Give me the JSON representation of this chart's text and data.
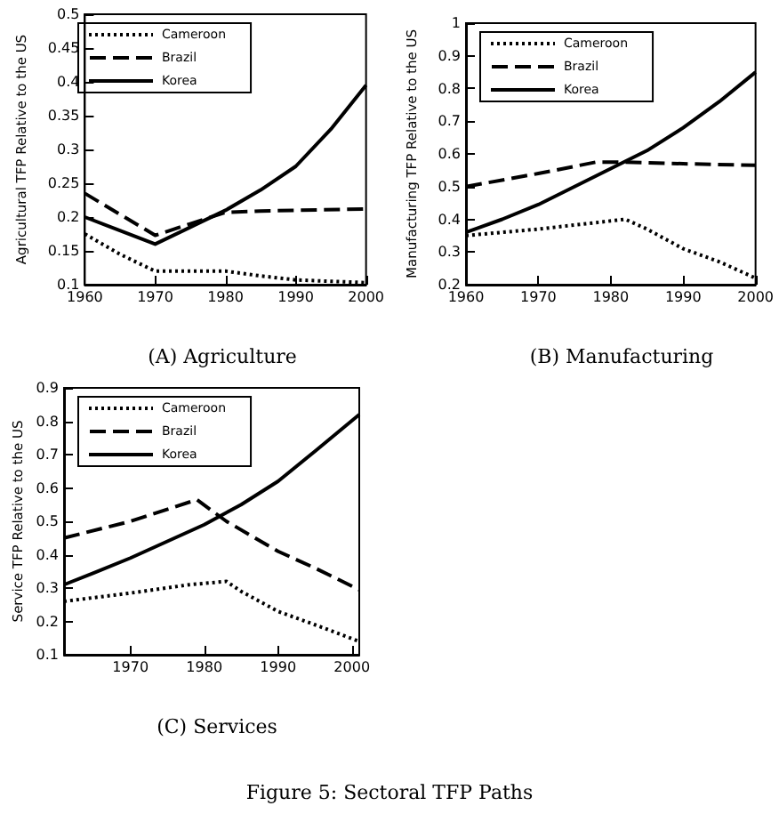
{
  "chart_data": [
    {
      "type": "line",
      "title": "(A) Agriculture",
      "ylabel": "Agricultural TFP Relative to the US",
      "xlim": [
        1960,
        2000
      ],
      "xticks": [
        1960,
        1970,
        1980,
        1990,
        2000
      ],
      "ylim": [
        0.1,
        0.5
      ],
      "yticks": [
        0.1,
        0.15,
        0.2,
        0.25,
        0.3,
        0.35,
        0.4,
        0.45,
        0.5
      ],
      "grid": false,
      "legend": "top left",
      "marker": "none",
      "series": [
        {
          "name": "Cameroon",
          "color": "#000000",
          "line_style": "dotted",
          "x": [
            1960,
            1965,
            1970,
            1975,
            1980,
            1985,
            1990,
            1995,
            2000
          ],
          "values": [
            0.175,
            0.145,
            0.12,
            0.12,
            0.12,
            0.113,
            0.107,
            0.105,
            0.103
          ]
        },
        {
          "name": "Brazil",
          "color": "#000000",
          "line_style": "dashed",
          "x": [
            1960,
            1970,
            1975,
            1980,
            1985,
            1990,
            2000
          ],
          "values": [
            0.235,
            0.173,
            0.19,
            0.207,
            0.209,
            0.21,
            0.212
          ]
        },
        {
          "name": "Korea",
          "color": "#000000",
          "line_style": "solid",
          "x": [
            1960,
            1970,
            1975,
            1980,
            1985,
            1990,
            1995,
            2000
          ],
          "values": [
            0.2,
            0.16,
            0.185,
            0.21,
            0.24,
            0.275,
            0.33,
            0.395
          ]
        }
      ]
    },
    {
      "type": "line",
      "title": "(B) Manufacturing",
      "ylabel": "Manufacturing TFP Relative to the US",
      "xlim": [
        1960,
        2000
      ],
      "xticks": [
        1960,
        1970,
        1980,
        1990,
        2000
      ],
      "ylim": [
        0.2,
        1
      ],
      "yticks": [
        0.2,
        0.3,
        0.4,
        0.5,
        0.6,
        0.7,
        0.8,
        0.9,
        1
      ],
      "grid": false,
      "legend": "top left",
      "marker": "none",
      "series": [
        {
          "name": "Cameroon",
          "color": "#000000",
          "line_style": "dotted",
          "x": [
            1960,
            1970,
            1978,
            1982,
            1985,
            1990,
            1995,
            2000
          ],
          "values": [
            0.35,
            0.37,
            0.39,
            0.4,
            0.37,
            0.31,
            0.27,
            0.22
          ]
        },
        {
          "name": "Brazil",
          "color": "#000000",
          "line_style": "dashed",
          "x": [
            1960,
            1970,
            1978,
            1982,
            1990,
            2000
          ],
          "values": [
            0.5,
            0.54,
            0.575,
            0.575,
            0.57,
            0.565
          ]
        },
        {
          "name": "Korea",
          "color": "#000000",
          "line_style": "solid",
          "x": [
            1960,
            1965,
            1970,
            1975,
            1980,
            1985,
            1990,
            1995,
            2000
          ],
          "values": [
            0.36,
            0.4,
            0.445,
            0.5,
            0.555,
            0.61,
            0.68,
            0.76,
            0.85
          ]
        }
      ]
    },
    {
      "type": "line",
      "title": "(C) Services",
      "ylabel": "Service TFP Relative to the US",
      "annotations": [
        "Figure 5: Sectoral TFP Paths"
      ],
      "xlim": [
        1961,
        2001
      ],
      "xticks": [
        1970,
        1980,
        1990,
        2000
      ],
      "ylim": [
        0.1,
        0.9
      ],
      "yticks": [
        0.1,
        0.2,
        0.3,
        0.4,
        0.5,
        0.6,
        0.7,
        0.8,
        0.9
      ],
      "grid": false,
      "legend": "top left",
      "marker": "none",
      "series": [
        {
          "name": "Cameroon",
          "color": "#000000",
          "line_style": "dotted",
          "x": [
            1961,
            1970,
            1978,
            1983,
            1985,
            1990,
            1995,
            2001
          ],
          "values": [
            0.26,
            0.285,
            0.31,
            0.32,
            0.29,
            0.23,
            0.19,
            0.14
          ]
        },
        {
          "name": "Brazil",
          "color": "#000000",
          "line_style": "dashed",
          "x": [
            1961,
            1970,
            1979,
            1983,
            1990,
            1995,
            2001
          ],
          "values": [
            0.45,
            0.5,
            0.565,
            0.5,
            0.41,
            0.36,
            0.295
          ]
        },
        {
          "name": "Korea",
          "color": "#000000",
          "line_style": "solid",
          "x": [
            1961,
            1965,
            1970,
            1975,
            1980,
            1985,
            1990,
            1995,
            2001
          ],
          "values": [
            0.31,
            0.345,
            0.39,
            0.44,
            0.49,
            0.55,
            0.62,
            0.71,
            0.82
          ]
        }
      ]
    }
  ]
}
